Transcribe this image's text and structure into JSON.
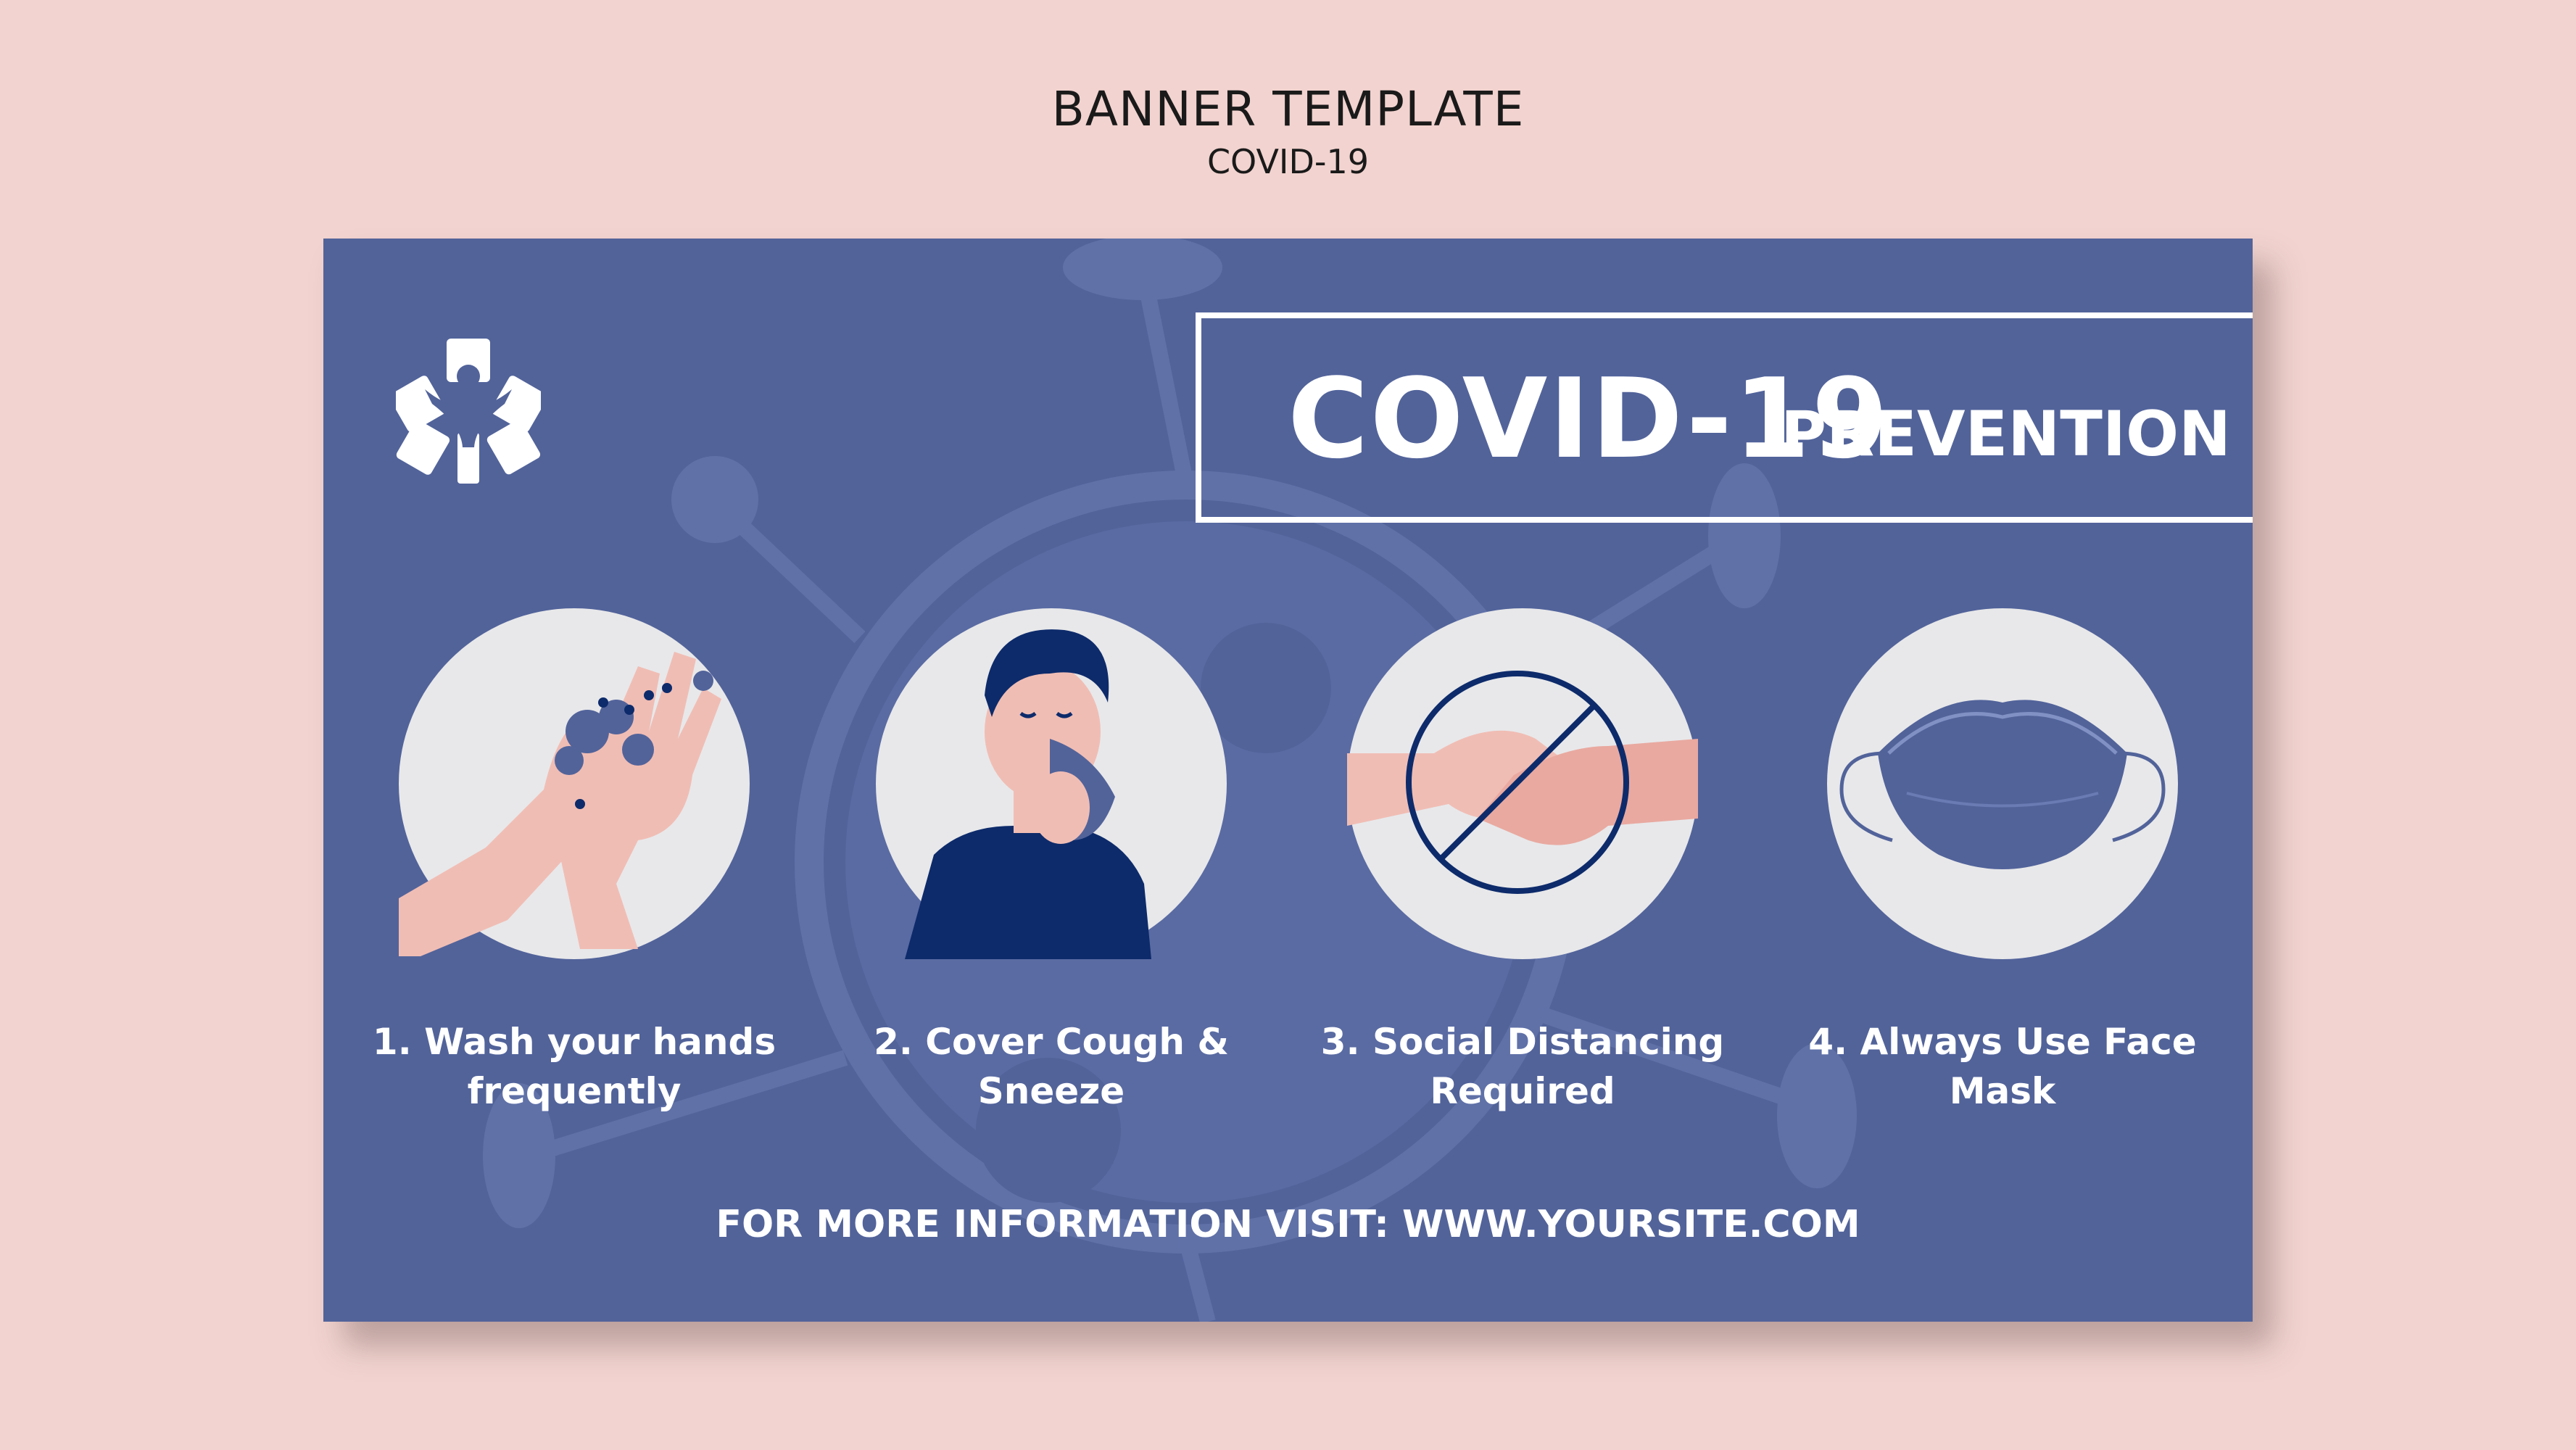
{
  "header": {
    "title": "BANNER TEMPLATE",
    "subtitle": "COVID-19"
  },
  "banner": {
    "title_main": "COVID-19",
    "title_sub": "PREVENTION",
    "steps": [
      {
        "line1": "1. Wash your hands",
        "line2": "frequently",
        "icon": "hand-washing-icon"
      },
      {
        "line1": "2. Cover Cough &",
        "line2": "Sneeze",
        "icon": "cough-person-icon"
      },
      {
        "line1": "3. Social Distancing",
        "line2": "Required",
        "icon": "no-handshake-icon"
      },
      {
        "line1": "4. Always Use Face",
        "line2": "Mask",
        "icon": "face-mask-icon"
      }
    ],
    "footer": "FOR MORE INFORMATION VISIT: WWW.YOURSITE.COM"
  },
  "colors": {
    "page_background": "#f2d3cf",
    "banner_background": "#52639a",
    "circle": "#e8e8ea",
    "skin": "#f0bdb4",
    "navy": "#0d2b6b"
  }
}
